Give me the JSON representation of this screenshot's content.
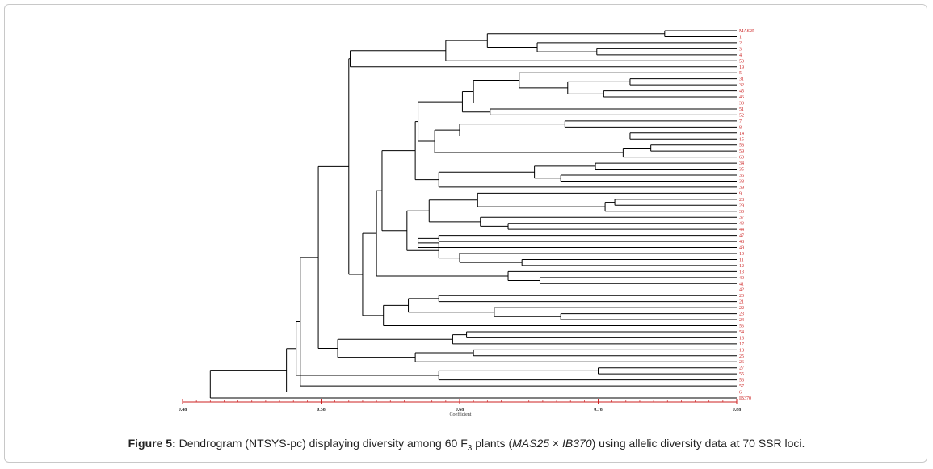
{
  "figure": {
    "caption_label": "Figure 5:",
    "caption_part1": " Dendrogram (NTSYS-pc) displaying diversity among 60 F",
    "caption_sub": "3",
    "caption_part2": " plants (",
    "caption_parent1": "MAS25",
    "caption_times": " × ",
    "caption_parent2": "IB370",
    "caption_part3": ") using allelic diversity data at 70 SSR loci."
  },
  "chart_data": {
    "type": "dendrogram",
    "xlabel": "Coefficient",
    "xlim": [
      0.48,
      0.88
    ],
    "xticks": [
      "0.48",
      "0.58",
      "0.68",
      "0.78",
      "0.88"
    ],
    "leaf_color": "#cc2222",
    "line_color": "#000000",
    "leaves": [
      "MAS25",
      "1",
      "2",
      "3",
      "4",
      "50",
      "19",
      "5",
      "31",
      "32",
      "45",
      "46",
      "33",
      "51",
      "52",
      "7",
      "8",
      "14",
      "15",
      "58",
      "59",
      "60",
      "34",
      "35",
      "36",
      "38",
      "39",
      "9",
      "28",
      "29",
      "30",
      "37",
      "43",
      "44",
      "47",
      "48",
      "49",
      "10",
      "11",
      "12",
      "13",
      "40",
      "41",
      "42",
      "20",
      "21",
      "22",
      "23",
      "24",
      "53",
      "54",
      "16",
      "17",
      "18",
      "25",
      "26",
      "27",
      "55",
      "56",
      "57",
      "6",
      "IB370"
    ],
    "merges": [
      [
        [
          0,
          1
        ],
        0.828
      ],
      [
        [
          3,
          4
        ],
        0.779
      ],
      [
        [
          2,
          "c1"
        ],
        0.736
      ],
      [
        [
          "c0",
          "c2"
        ],
        0.7
      ],
      [
        [
          "c3",
          5
        ],
        0.67
      ],
      [
        [
          "c4",
          6
        ],
        0.601
      ],
      [
        [
          8,
          9
        ],
        0.803
      ],
      [
        [
          10,
          11
        ],
        0.784
      ],
      [
        [
          "c6",
          "c7"
        ],
        0.758
      ],
      [
        [
          7,
          "c8"
        ],
        0.723
      ],
      [
        [
          13,
          14
        ],
        0.702
      ],
      [
        [
          "c9",
          12
        ],
        0.69
      ],
      [
        [
          "c11",
          "c10"
        ],
        0.682
      ],
      [
        [
          15,
          16
        ],
        0.756
      ],
      [
        [
          17,
          18
        ],
        0.803
      ],
      [
        [
          "c13",
          "c14"
        ],
        0.68
      ],
      [
        [
          19,
          20
        ],
        0.818
      ],
      [
        [
          21,
          "c16"
        ],
        0.798
      ],
      [
        [
          "c15",
          "c17"
        ],
        0.662
      ],
      [
        [
          "c12",
          "c18"
        ],
        0.65
      ],
      [
        [
          22,
          23
        ],
        0.778
      ],
      [
        [
          24,
          25
        ],
        0.753
      ],
      [
        [
          "c20",
          "c21"
        ],
        0.734
      ],
      [
        [
          "c22",
          26
        ],
        0.665
      ],
      [
        [
          "c19",
          "c23"
        ],
        0.648
      ],
      [
        [
          28,
          29
        ],
        0.792
      ],
      [
        [
          "c25",
          30
        ],
        0.785
      ],
      [
        [
          27,
          "c26"
        ],
        0.693
      ],
      [
        [
          32,
          33
        ],
        0.715
      ],
      [
        [
          "c28",
          31
        ],
        0.695
      ],
      [
        [
          "c27",
          "c29"
        ],
        0.658
      ],
      [
        [
          34,
          35
        ],
        0.665
      ],
      [
        [
          "c31",
          36
        ],
        0.65
      ],
      [
        [
          38,
          39
        ],
        0.725
      ],
      [
        [
          37,
          "c33"
        ],
        0.68
      ],
      [
        [
          "c32",
          "c34"
        ],
        0.665
      ],
      [
        [
          "c30",
          "c35"
        ],
        0.642
      ],
      [
        [
          "c24",
          "c36"
        ],
        0.624
      ],
      [
        [
          41,
          42
        ],
        0.738
      ],
      [
        [
          40,
          "c38"
        ],
        0.715
      ],
      [
        [
          "c37",
          "c39"
        ],
        0.62
      ],
      [
        [
          44,
          45
        ],
        0.665
      ],
      [
        [
          47,
          48
        ],
        0.753
      ],
      [
        [
          46,
          "c42"
        ],
        0.705
      ],
      [
        [
          "c41",
          "c43"
        ],
        0.643
      ],
      [
        [
          "c44",
          49
        ],
        0.625
      ],
      [
        [
          "c40",
          "c45"
        ],
        0.61
      ],
      [
        [
          "c5",
          "c46"
        ],
        0.6
      ],
      [
        [
          50,
          51
        ],
        0.685
      ],
      [
        [
          "c48",
          52
        ],
        0.675
      ],
      [
        [
          53,
          54
        ],
        0.69
      ],
      [
        [
          "c50",
          55
        ],
        0.648
      ],
      [
        [
          56,
          57
        ],
        0.78
      ],
      [
        [
          "c52",
          58
        ],
        0.665
      ],
      [
        [
          "c49",
          "c51"
        ],
        0.592
      ],
      [
        [
          "c47",
          "c54"
        ],
        0.578
      ],
      [
        [
          "c55",
          59
        ],
        0.565
      ],
      [
        [
          "c56",
          "c53"
        ],
        0.562
      ],
      [
        [
          "c57",
          60
        ],
        0.555
      ],
      [
        [
          "c58",
          61
        ],
        0.5
      ]
    ]
  }
}
